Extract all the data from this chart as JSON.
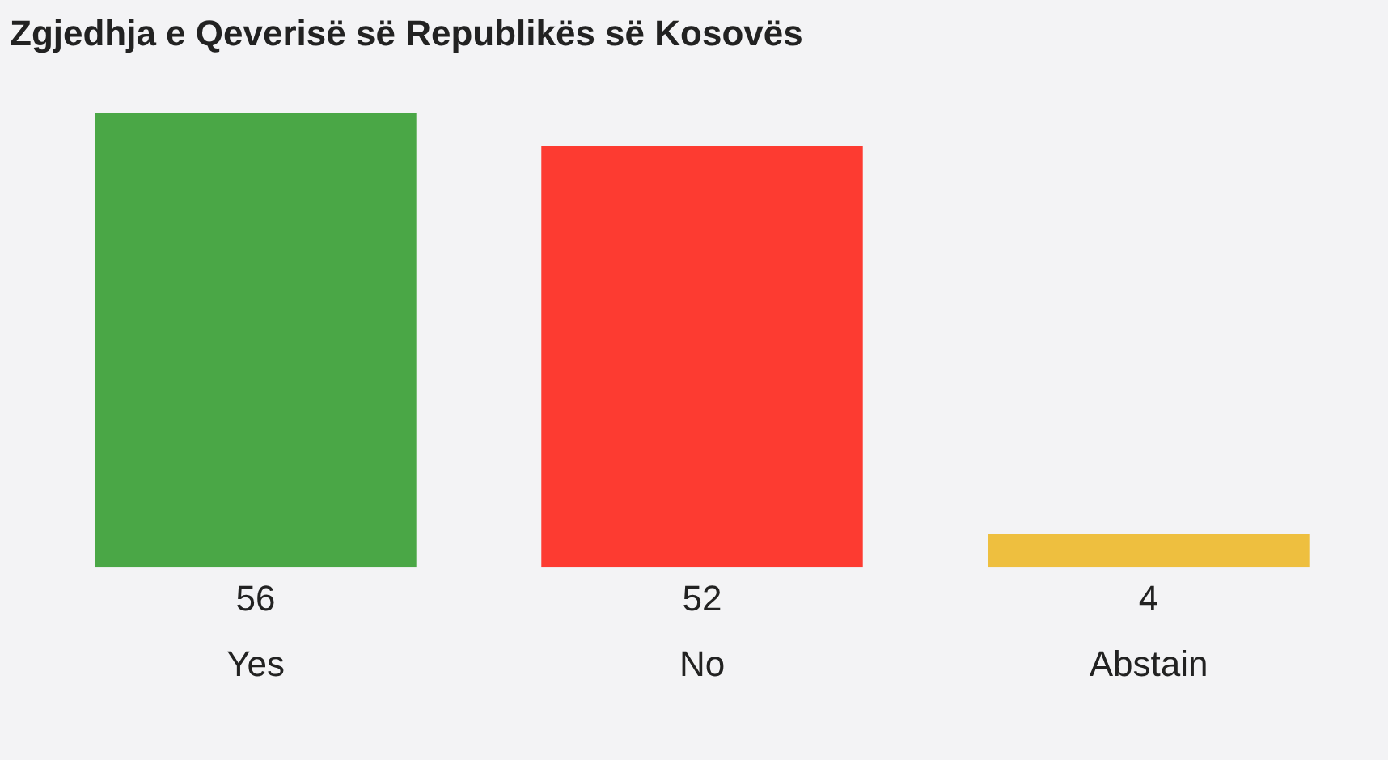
{
  "chart_data": {
    "type": "bar",
    "title": "Zgjedhja e Qeverisë së Republikës së Kosovës",
    "categories": [
      "Yes",
      "No",
      "Abstain"
    ],
    "values": [
      56,
      52,
      4
    ],
    "colors": [
      "#4aa746",
      "#fd3b31",
      "#eebf3f"
    ],
    "data_labels": true,
    "grid": false,
    "legend": false
  }
}
